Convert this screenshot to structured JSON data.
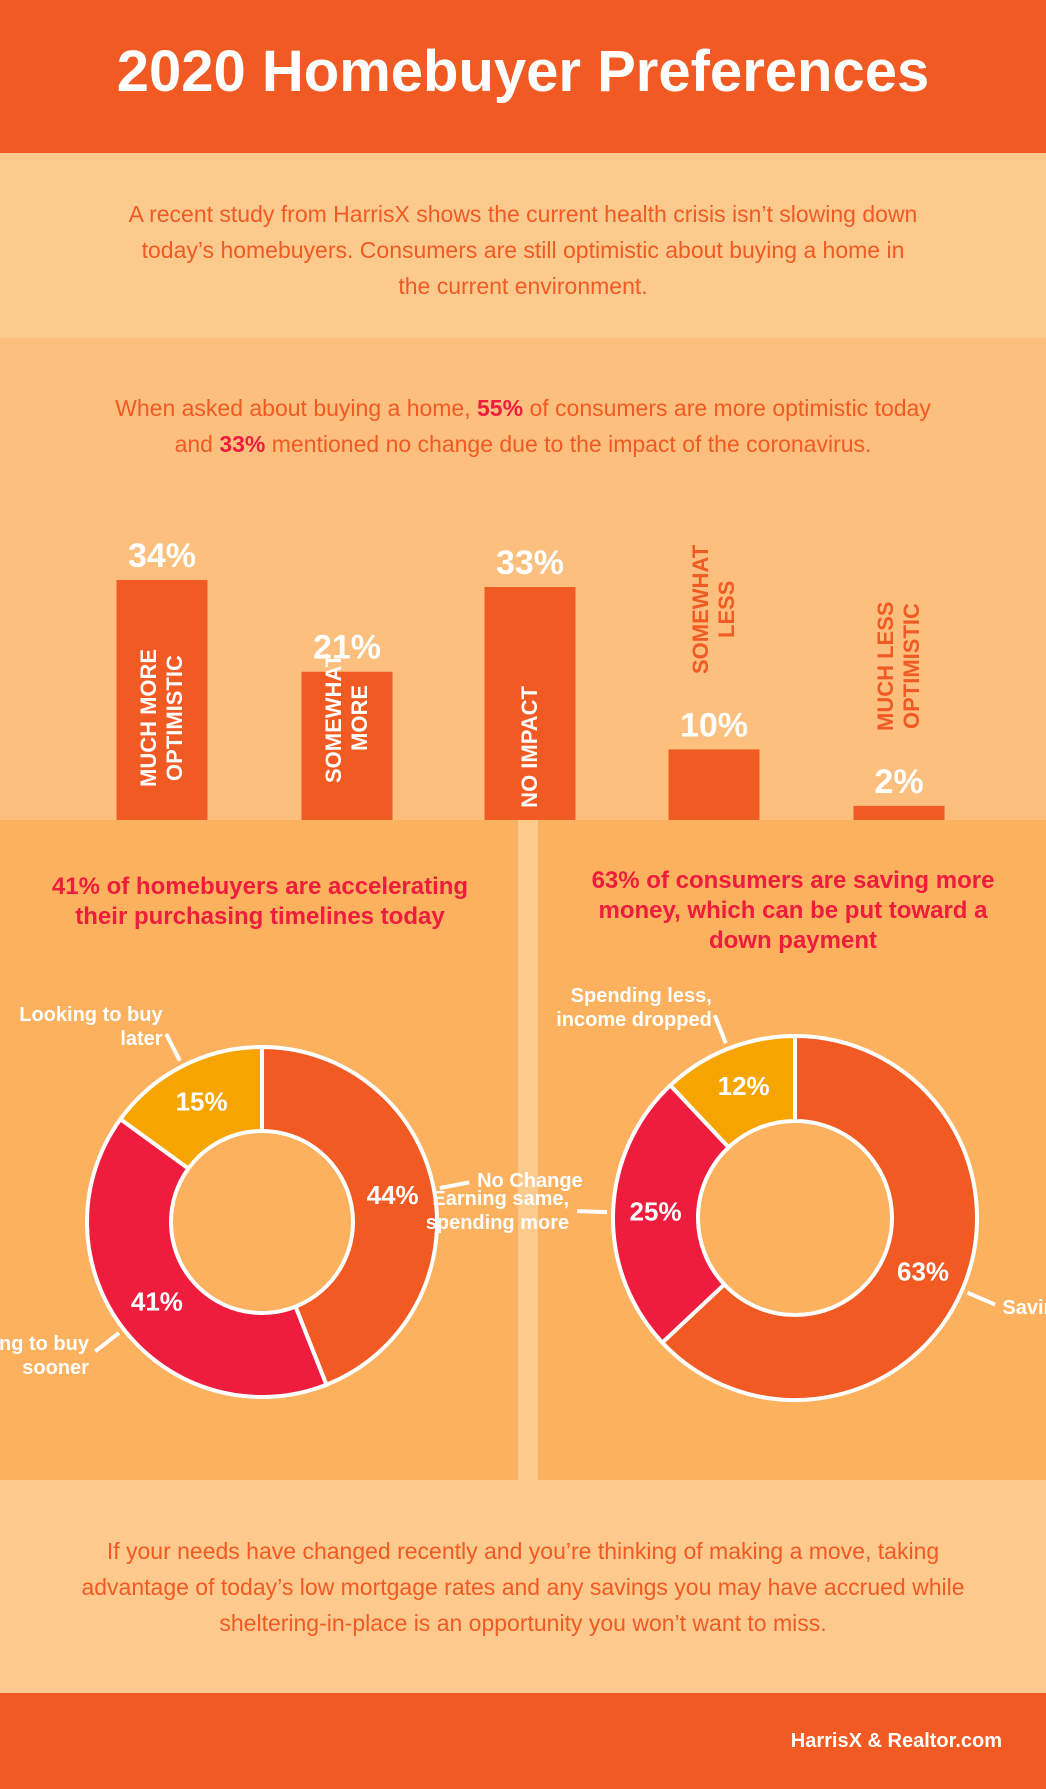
{
  "header": {
    "title": "2020 Homebuyer Preferences"
  },
  "intro": "A recent study from HarrisX shows the current health crisis isn’t slowing down today’s homebuyers. Consumers are still optimistic about buying a home in the current environment.",
  "stat_text": [
    "When asked about buying a home, ",
    "55%",
    " of consumers are more optimistic today and ",
    "33%",
    " mentioned no change due to the impact of the coronavirus."
  ],
  "chart_data": [
    {
      "type": "bar",
      "categories": [
        "MUCH MORE OPTIMISTIC",
        "SOMEWHAT MORE",
        "NO IMPACT",
        "SOMEWHAT LESS",
        "MUCH LESS OPTIMISTIC"
      ],
      "values": [
        34,
        21,
        33,
        10,
        2
      ],
      "value_labels": [
        "34%",
        "21%",
        "33%",
        "10%",
        "2%"
      ],
      "color": "#f15a22"
    },
    {
      "type": "donut",
      "title": "41% of homebuyers are accelerating their purchasing timelines today",
      "categories": [
        "No Change",
        "Looking to buy sooner",
        "Looking to buy later"
      ],
      "values": [
        44,
        41,
        15
      ],
      "value_labels": [
        "44%",
        "41%",
        "15%"
      ],
      "colors": [
        "#f15a22",
        "#ee1c3d",
        "#f6a400"
      ]
    },
    {
      "type": "donut",
      "title": "63% of consumers are saving more money, which can be put toward a down payment",
      "categories": [
        "Saving money",
        "Earning same, spending more",
        "Spending less, income dropped"
      ],
      "values": [
        63,
        25,
        12
      ],
      "value_labels": [
        "63%",
        "25%",
        "12%"
      ],
      "colors": [
        "#f15a22",
        "#ee1c3d",
        "#f6a400"
      ]
    }
  ],
  "closing": "If your needs have changed recently and you’re thinking of making a move, taking advantage of today’s low mortgage rates and any savings you may have accrued while sheltering-in-place is an opportunity you won’t want to miss.",
  "footer": {
    "source": "HarrisX & Realtor.com"
  }
}
